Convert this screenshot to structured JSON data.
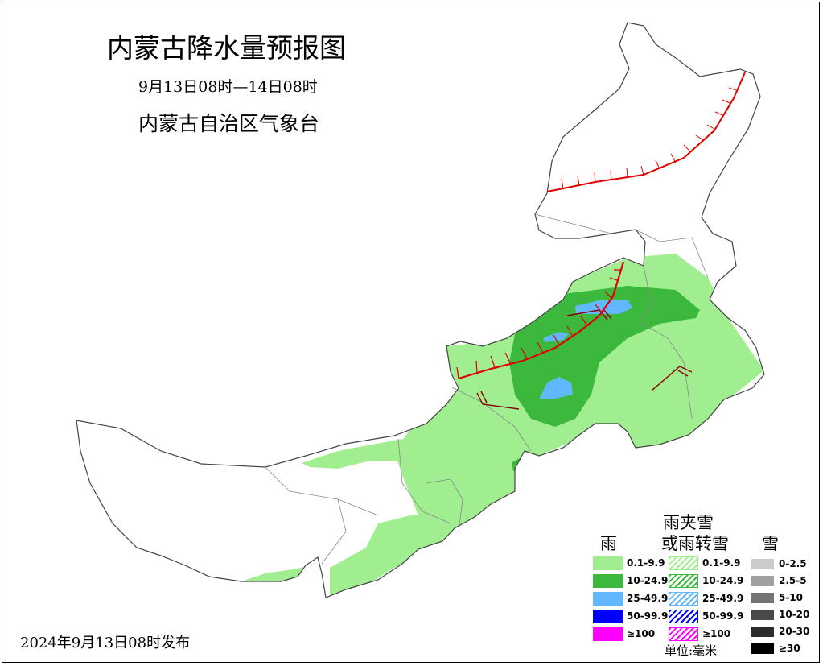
{
  "header": {
    "title": "内蒙古降水量预报图",
    "period": "9月13日08时—14日08时",
    "organization": "内蒙古自治区气象台"
  },
  "footer": {
    "issued": "2024年9月13日08时发布"
  },
  "legend": {
    "rain": {
      "heading": "雨",
      "items": [
        {
          "label": "0.1-9.9",
          "color": "#a0ee90"
        },
        {
          "label": "10-24.9",
          "color": "#3cb93c"
        },
        {
          "label": "25-49.9",
          "color": "#62b8ff"
        },
        {
          "label": "50-99.9",
          "color": "#0000ff"
        },
        {
          "label": "≥100",
          "color": "#ff00ff"
        }
      ]
    },
    "mixed": {
      "heading_line1": "雨夹雪",
      "heading_line2": "或雨转雪",
      "items": [
        {
          "label": "0.1-9.9",
          "color": "#a0ee90"
        },
        {
          "label": "10-24.9",
          "color": "#3cb93c"
        },
        {
          "label": "25-49.9",
          "color": "#62b8ff"
        },
        {
          "label": "50-99.9",
          "color": "#0000ff"
        },
        {
          "label": "≥100",
          "color": "#ff00ff"
        }
      ]
    },
    "snow": {
      "heading": "雪",
      "items": [
        {
          "label": "0-2.5",
          "color": "#cccccc"
        },
        {
          "label": "2.5-5",
          "color": "#a0a0a0"
        },
        {
          "label": "5-10",
          "color": "#747474"
        },
        {
          "label": "10-20",
          "color": "#4a4a4a"
        },
        {
          "label": "20-30",
          "color": "#2c2c2c"
        },
        {
          "label": "≥30",
          "color": "#000000"
        }
      ]
    },
    "unit": "单位:毫米"
  },
  "map": {
    "front_color": "#e00000",
    "trough_color": "#8b0000"
  }
}
